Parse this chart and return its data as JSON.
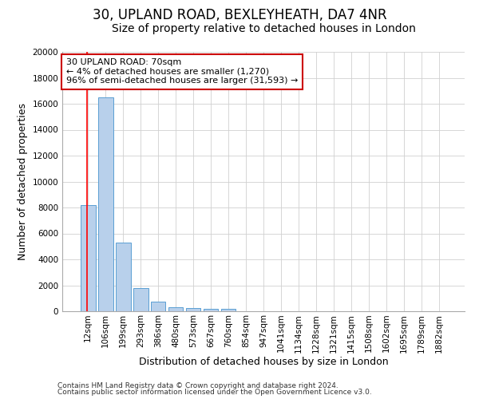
{
  "title": "30, UPLAND ROAD, BEXLEYHEATH, DA7 4NR",
  "subtitle": "Size of property relative to detached houses in London",
  "xlabel": "Distribution of detached houses by size in London",
  "ylabel": "Number of detached properties",
  "categories": [
    "12sqm",
    "106sqm",
    "199sqm",
    "293sqm",
    "386sqm",
    "480sqm",
    "573sqm",
    "667sqm",
    "760sqm",
    "854sqm",
    "947sqm",
    "1041sqm",
    "1134sqm",
    "1228sqm",
    "1321sqm",
    "1415sqm",
    "1508sqm",
    "1602sqm",
    "1695sqm",
    "1789sqm",
    "1882sqm"
  ],
  "values": [
    8200,
    16500,
    5300,
    1800,
    750,
    300,
    225,
    175,
    175,
    0,
    0,
    0,
    0,
    0,
    0,
    0,
    0,
    0,
    0,
    0,
    0
  ],
  "bar_color": "#b8d0eb",
  "bar_edge_color": "#5a9fd4",
  "ylim": [
    0,
    20000
  ],
  "yticks": [
    0,
    2000,
    4000,
    6000,
    8000,
    10000,
    12000,
    14000,
    16000,
    18000,
    20000
  ],
  "red_line_x": -0.07,
  "annotation_text": "30 UPLAND ROAD: 70sqm\n← 4% of detached houses are smaller (1,270)\n96% of semi-detached houses are larger (31,593) →",
  "annotation_box_color": "#ffffff",
  "annotation_border_color": "#cc0000",
  "footer_line1": "Contains HM Land Registry data © Crown copyright and database right 2024.",
  "footer_line2": "Contains public sector information licensed under the Open Government Licence v3.0.",
  "background_color": "#ffffff",
  "grid_color": "#d0d0d0",
  "title_fontsize": 12,
  "subtitle_fontsize": 10,
  "tick_fontsize": 7.5,
  "ylabel_fontsize": 9,
  "xlabel_fontsize": 9,
  "footer_fontsize": 6.5
}
